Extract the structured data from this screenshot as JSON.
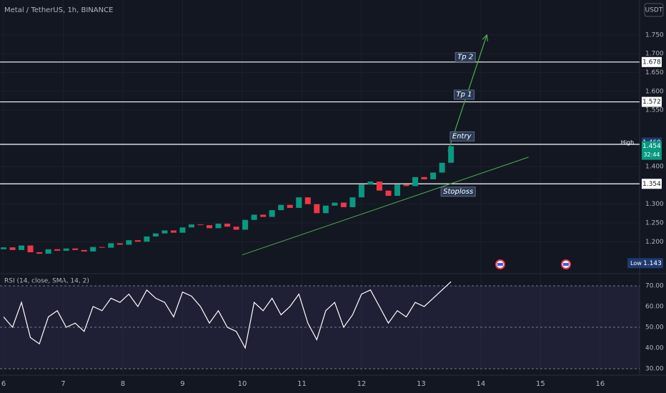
{
  "chart_data": [
    {
      "type": "candlestick",
      "title": "Metal / TetherUS, 1h, BINANCE",
      "unit": "USDT",
      "up_color": "#089981",
      "down_color": "#f23645",
      "grid": true,
      "x": [
        6.0,
        6.15,
        6.3,
        6.45,
        6.6,
        6.75,
        6.9,
        7.05,
        7.2,
        7.35,
        7.5,
        7.65,
        7.8,
        7.95,
        8.1,
        8.25,
        8.4,
        8.55,
        8.7,
        8.85,
        9.0,
        9.15,
        9.3,
        9.45,
        9.6,
        9.75,
        9.9,
        10.05,
        10.2,
        10.35,
        10.5,
        10.65,
        10.8,
        10.95,
        11.1,
        11.25,
        11.4,
        11.55,
        11.7,
        11.85,
        12.0,
        12.15,
        12.3,
        12.45,
        12.6,
        12.75,
        12.9,
        13.05,
        13.2,
        13.35,
        13.5
      ],
      "open": [
        1.18,
        1.185,
        1.178,
        1.19,
        1.172,
        1.168,
        1.18,
        1.176,
        1.182,
        1.178,
        1.174,
        1.186,
        1.184,
        1.196,
        1.192,
        1.204,
        1.2,
        1.214,
        1.222,
        1.23,
        1.224,
        1.238,
        1.246,
        1.244,
        1.236,
        1.248,
        1.24,
        1.232,
        1.258,
        1.272,
        1.266,
        1.284,
        1.298,
        1.29,
        1.318,
        1.3,
        1.276,
        1.296,
        1.304,
        1.292,
        1.318,
        1.352,
        1.36,
        1.336,
        1.322,
        1.352,
        1.348,
        1.372,
        1.366,
        1.384,
        1.41
      ],
      "high": {
        "label": "High",
        "value": 1.46,
        "value_label": "1.460"
      },
      "low": {
        "label": "Low",
        "value": 1.143
      },
      "close": [
        1.185,
        1.178,
        1.19,
        1.172,
        1.168,
        1.18,
        1.176,
        1.182,
        1.178,
        1.174,
        1.186,
        1.184,
        1.196,
        1.192,
        1.204,
        1.2,
        1.214,
        1.222,
        1.23,
        1.224,
        1.238,
        1.246,
        1.244,
        1.236,
        1.248,
        1.24,
        1.232,
        1.258,
        1.272,
        1.266,
        1.284,
        1.298,
        1.29,
        1.318,
        1.3,
        1.276,
        1.296,
        1.304,
        1.292,
        1.318,
        1.352,
        1.36,
        1.336,
        1.322,
        1.352,
        1.348,
        1.372,
        1.366,
        1.384,
        1.41,
        1.454
      ],
      "xlim": [
        5.94,
        16.66
      ],
      "ylim": [
        1.115,
        1.843
      ],
      "yticks": [
        {
          "value": 1.75,
          "label": "1.750"
        },
        {
          "value": 1.7,
          "label": "1.700"
        },
        {
          "value": 1.65,
          "label": "1.650"
        },
        {
          "value": 1.6,
          "label": "1.600"
        },
        {
          "value": 1.55,
          "label": "1.550"
        },
        {
          "value": 1.4,
          "label": "1.400"
        },
        {
          "value": 1.3,
          "label": "1.300"
        },
        {
          "value": 1.25,
          "label": "1.250"
        },
        {
          "value": 1.2,
          "label": "1.200"
        }
      ],
      "levels": [
        1.678,
        1.572,
        1.459,
        1.354
      ],
      "annotations": [
        {
          "text": "Tp 2",
          "x": 13.74,
          "y": 1.692
        },
        {
          "text": "Tp 1",
          "x": 13.72,
          "y": 1.592
        },
        {
          "text": "Entry",
          "x": 13.68,
          "y": 1.481
        },
        {
          "text": "Stoploss",
          "x": 13.62,
          "y": 1.334
        }
      ],
      "trendline": {
        "from": [
          10.0,
          1.165
        ],
        "to": [
          14.8,
          1.425
        ]
      },
      "arrow": {
        "from": [
          13.45,
          1.44
        ],
        "to": [
          14.1,
          1.75
        ]
      },
      "last": {
        "value": 1.454,
        "countdown": "32:44"
      }
    },
    {
      "type": "line",
      "title": "RSI (14, close, SMA, 14, 2)",
      "color": "#ffffff",
      "x": [
        6.0,
        6.15,
        6.3,
        6.45,
        6.6,
        6.75,
        6.9,
        7.05,
        7.2,
        7.35,
        7.5,
        7.65,
        7.8,
        7.95,
        8.1,
        8.25,
        8.4,
        8.55,
        8.7,
        8.85,
        9.0,
        9.15,
        9.3,
        9.45,
        9.6,
        9.75,
        9.9,
        10.05,
        10.2,
        10.35,
        10.5,
        10.65,
        10.8,
        10.95,
        11.1,
        11.25,
        11.4,
        11.55,
        11.7,
        11.85,
        12.0,
        12.15,
        12.3,
        12.45,
        12.6,
        12.75,
        12.9,
        13.05,
        13.2,
        13.35,
        13.5
      ],
      "values": [
        55,
        50,
        62,
        45,
        42,
        55,
        58,
        50,
        52,
        48,
        60,
        58,
        64,
        62,
        66,
        60,
        68,
        64,
        62,
        55,
        67,
        65,
        60,
        52,
        58,
        50,
        48,
        40,
        62,
        58,
        64,
        56,
        60,
        66,
        52,
        44,
        58,
        62,
        50,
        56,
        66,
        68,
        60,
        52,
        58,
        55,
        62,
        60,
        64,
        68,
        72
      ],
      "band": [
        30,
        70
      ],
      "xlim": [
        5.94,
        16.66
      ],
      "ylim": [
        26.9,
        75.86
      ],
      "xticks": [
        6,
        7,
        8,
        9,
        10,
        11,
        12,
        13,
        14,
        15,
        16
      ],
      "yticks": [
        {
          "value": 70,
          "label": "70.00"
        },
        {
          "value": 60,
          "label": "60.00"
        },
        {
          "value": 50,
          "label": "50.00"
        },
        {
          "value": 40,
          "label": "40.00"
        },
        {
          "value": 30,
          "label": "30.00"
        }
      ]
    }
  ]
}
